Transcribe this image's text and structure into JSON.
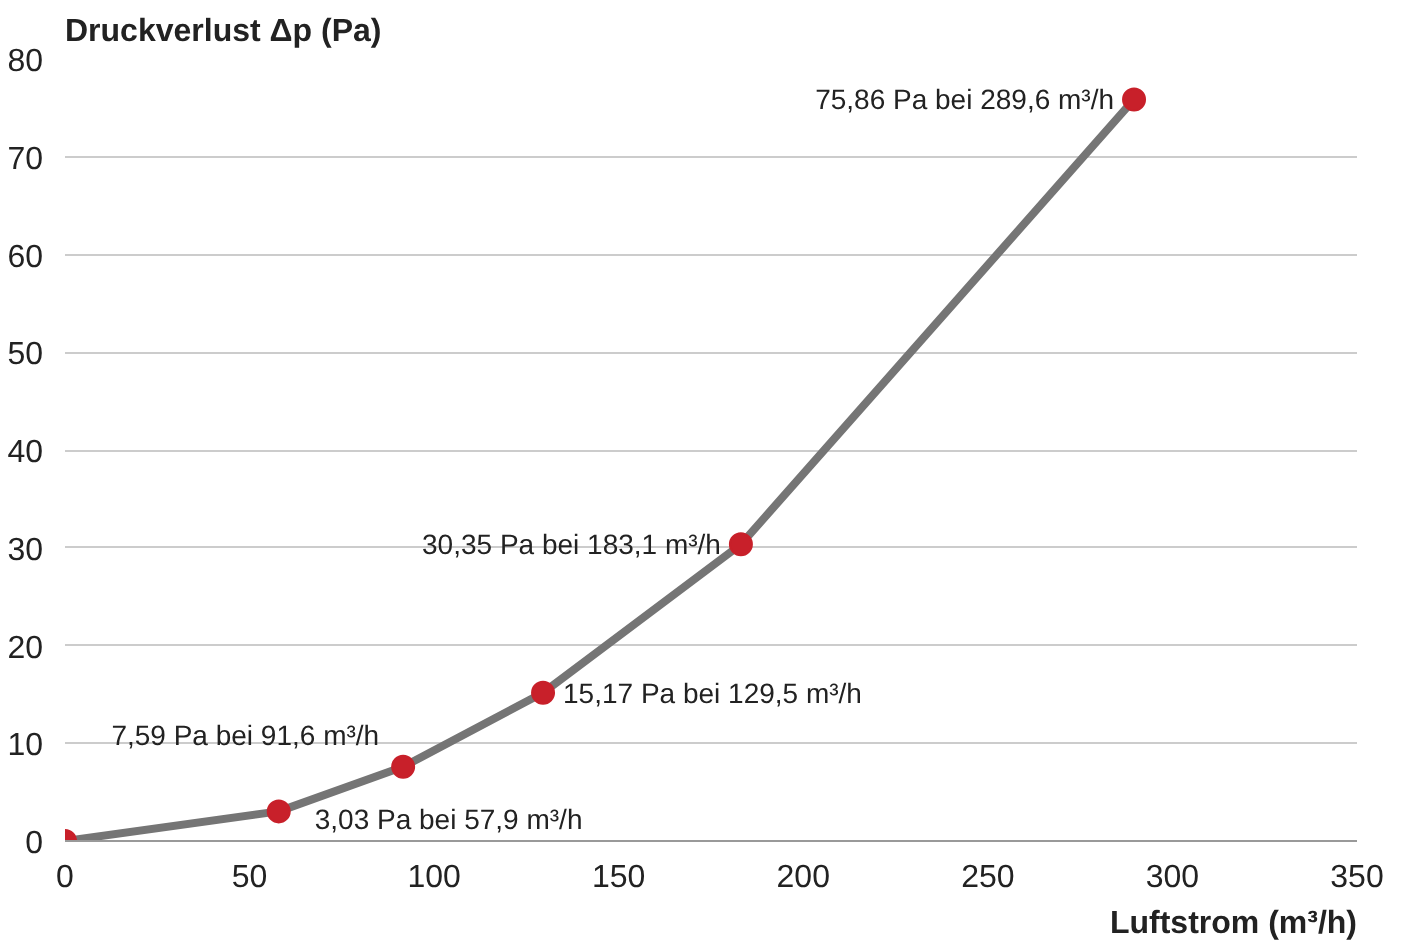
{
  "chart_data": {
    "type": "line",
    "xlabel": "Luftstrom (m³/h)",
    "ylabel": "Druckverlust Δp (Pa)",
    "x": [
      0,
      57.9,
      91.6,
      129.5,
      183.1,
      289.6
    ],
    "series": [
      {
        "color": "#757575",
        "values": [
          0,
          3.03,
          7.59,
          15.17,
          30.35,
          75.86
        ]
      },
      {
        "type": "scatter",
        "color": "#c8202a",
        "values": [
          0,
          3.03,
          7.59,
          15.17,
          30.35,
          75.86
        ]
      }
    ],
    "annotations": [
      {
        "text": "3,03 Pa bei 57,9 m³/h",
        "x": 57.9,
        "y": 3.03
      },
      {
        "text": "7,59 Pa bei 91,6 m³/h",
        "x": 91.6,
        "y": 7.59
      },
      {
        "text": "15,17 Pa bei 129,5 m³/h",
        "x": 129.5,
        "y": 15.17
      },
      {
        "text": "30,35 Pa bei 183,1 m³/h",
        "x": 183.1,
        "y": 30.35
      },
      {
        "text": "75,86 Pa bei 289,6 m³/h",
        "x": 289.6,
        "y": 75.86
      }
    ],
    "xlim": [
      0,
      350
    ],
    "xticks": [
      0,
      50,
      100,
      150,
      200,
      250,
      300,
      350
    ],
    "ylim": [
      0,
      80
    ],
    "yticks": [
      0,
      10,
      20,
      30,
      40,
      50,
      60,
      70,
      80
    ],
    "grid": "y",
    "line_style": "solid"
  }
}
